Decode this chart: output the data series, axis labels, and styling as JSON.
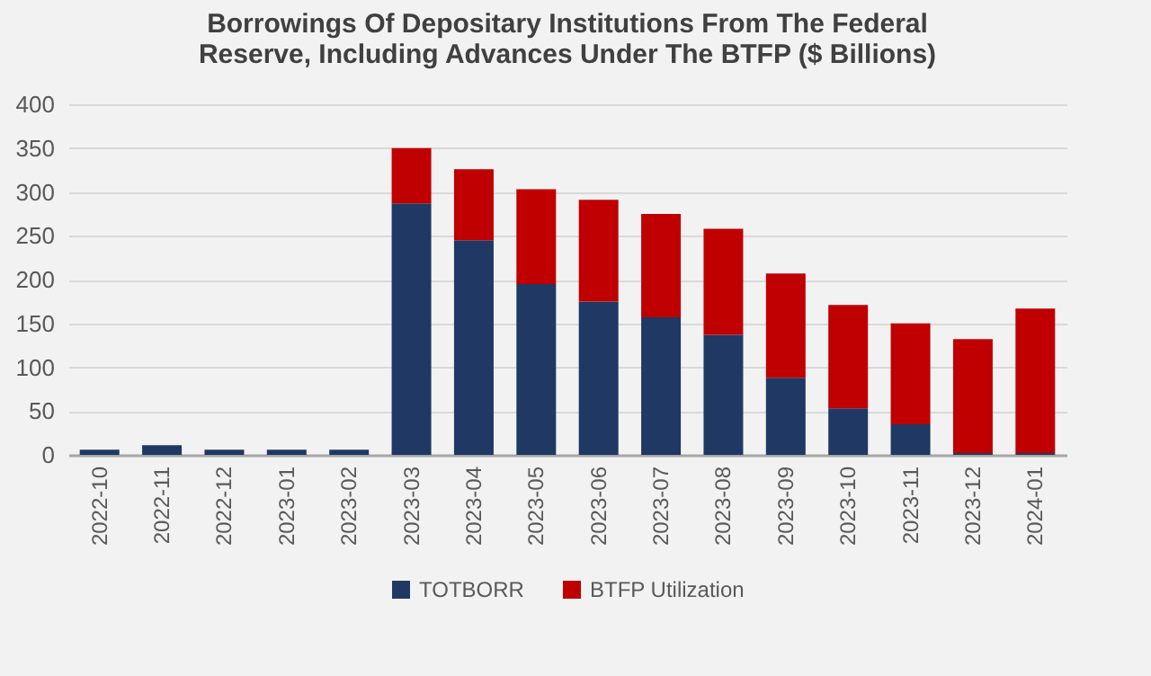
{
  "chart_data": {
    "type": "bar",
    "title": "Borrowings Of Depositary Institutions From The Federal Reserve, Including Advances Under The BTFP ($ Billions)",
    "categories": [
      "2022-10",
      "2022-11",
      "2022-12",
      "2023-01",
      "2023-02",
      "2023-03",
      "2023-04",
      "2023-05",
      "2023-06",
      "2023-07",
      "2023-08",
      "2023-09",
      "2023-10",
      "2023-11",
      "2023-12",
      "2024-01"
    ],
    "stacked": true,
    "series": [
      {
        "name": "TOTBORR",
        "color": "#1f3864",
        "values": [
          6,
          11,
          6,
          6,
          6,
          287,
          245,
          195,
          175,
          157,
          137,
          88,
          53,
          35,
          2,
          2
        ]
      },
      {
        "name": "BTFP Utilization",
        "color": "#c00000",
        "values": [
          null,
          null,
          null,
          null,
          null,
          63,
          81,
          108,
          116,
          118,
          121,
          119,
          118,
          115,
          130,
          165
        ]
      }
    ],
    "ylim": [
      0,
      400
    ],
    "yticks": [
      0,
      50,
      100,
      150,
      200,
      250,
      300,
      350,
      400
    ],
    "grid": "y",
    "legend": "bottom"
  }
}
